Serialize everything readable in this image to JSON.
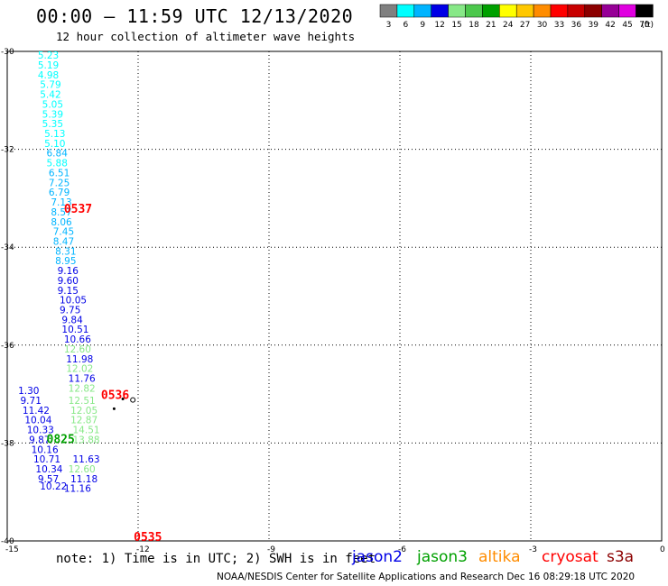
{
  "header": {
    "title": "00:00 – 11:59 UTC 12/13/2020",
    "subtitle": "12 hour collection of altimeter wave heights"
  },
  "colorbar": {
    "labels": [
      "3",
      "6",
      "9",
      "12",
      "15",
      "18",
      "21",
      "24",
      "27",
      "30",
      "33",
      "36",
      "39",
      "42",
      "45",
      "70"
    ],
    "unit": "(ft)",
    "colors": [
      "#808080",
      "#00ffff",
      "#00b4ff",
      "#0000e6",
      "#87e887",
      "#4cc84c",
      "#00a000",
      "#ffff00",
      "#ffc800",
      "#ff8c00",
      "#ff0000",
      "#c80000",
      "#8c0000",
      "#960096",
      "#e000e0",
      "#000000"
    ]
  },
  "footer": {
    "note": "note:  1) Time is in UTC; 2) SWH is in feet",
    "credit": "NOAA/NESDIS Center for Satellite Applications and Research    Dec 16 08:29:18 UTC 2020",
    "satellites": [
      {
        "name": "jason2",
        "color": "#0000e6"
      },
      {
        "name": "jason3",
        "color": "#00a000"
      },
      {
        "name": "altika",
        "color": "#ff8c00"
      },
      {
        "name": "cryosat",
        "color": "#ff0000"
      },
      {
        "name": "s3a",
        "color": "#8c0000"
      }
    ]
  },
  "chart_data": {
    "type": "scatter",
    "title": "00:00 – 11:59 UTC 12/13/2020",
    "subtitle": "12 hour collection of altimeter wave heights",
    "xlabel": "",
    "ylabel": "",
    "xlim": [
      -15,
      0
    ],
    "ylim": [
      -40,
      -30
    ],
    "xticks": [
      -15,
      -12,
      -9,
      -6,
      -3,
      0
    ],
    "xtick_labels": [
      "-15",
      "-12",
      "-9",
      "-6",
      "-3",
      "0"
    ],
    "yticks": [
      -30,
      -32,
      -34,
      -36,
      -38,
      -40
    ],
    "ytick_labels": [
      "-30",
      "-32",
      "-34",
      "-36",
      "-38",
      "-40"
    ],
    "grid": true,
    "pass_labels": [
      {
        "text": "0537",
        "x": -13.7,
        "y": -33.3,
        "color": "#ff0000"
      },
      {
        "text": "0536",
        "x": -12.85,
        "y": -37.1,
        "color": "#ff0000"
      },
      {
        "text": "0825",
        "x": -14.1,
        "y": -38.0,
        "color": "#00a000"
      },
      {
        "text": "0535",
        "x": -12.1,
        "y": -40.0,
        "color": "#ff0000"
      }
    ],
    "points": [
      {
        "x": -14.3,
        "y": -30.15,
        "value": "5.23",
        "color": "#00ffff"
      },
      {
        "x": -14.3,
        "y": -30.35,
        "value": "5.19",
        "color": "#00ffff"
      },
      {
        "x": -14.3,
        "y": -30.55,
        "value": "4.98",
        "color": "#00ffff"
      },
      {
        "x": -14.25,
        "y": -30.75,
        "value": "5.79",
        "color": "#00ffff"
      },
      {
        "x": -14.25,
        "y": -30.95,
        "value": "5.42",
        "color": "#00ffff"
      },
      {
        "x": -14.2,
        "y": -31.15,
        "value": "5.05",
        "color": "#00ffff"
      },
      {
        "x": -14.2,
        "y": -31.35,
        "value": "5.39",
        "color": "#00ffff"
      },
      {
        "x": -14.2,
        "y": -31.55,
        "value": "5.35",
        "color": "#00ffff"
      },
      {
        "x": -14.15,
        "y": -31.75,
        "value": "5.13",
        "color": "#00ffff"
      },
      {
        "x": -14.15,
        "y": -31.95,
        "value": "5.10",
        "color": "#00ffff"
      },
      {
        "x": -14.1,
        "y": -32.15,
        "value": "6.84",
        "color": "#00b4ff"
      },
      {
        "x": -14.1,
        "y": -32.35,
        "value": "5.88",
        "color": "#00ffff"
      },
      {
        "x": -14.05,
        "y": -32.55,
        "value": "6.51",
        "color": "#00b4ff"
      },
      {
        "x": -14.05,
        "y": -32.75,
        "value": "7.25",
        "color": "#00b4ff"
      },
      {
        "x": -14.05,
        "y": -32.95,
        "value": "6.79",
        "color": "#00b4ff"
      },
      {
        "x": -14.0,
        "y": -33.15,
        "value": "7.13",
        "color": "#00b4ff"
      },
      {
        "x": -14.0,
        "y": -33.35,
        "value": "8.57",
        "color": "#00b4ff"
      },
      {
        "x": -14.0,
        "y": -33.55,
        "value": "8.06",
        "color": "#00b4ff"
      },
      {
        "x": -13.95,
        "y": -33.75,
        "value": "7.45",
        "color": "#00b4ff"
      },
      {
        "x": -13.95,
        "y": -33.95,
        "value": "8.47",
        "color": "#00b4ff"
      },
      {
        "x": -13.9,
        "y": -34.15,
        "value": "8.31",
        "color": "#00b4ff"
      },
      {
        "x": -13.9,
        "y": -34.35,
        "value": "8.95",
        "color": "#00b4ff"
      },
      {
        "x": -13.85,
        "y": -34.55,
        "value": "9.16",
        "color": "#0000e6"
      },
      {
        "x": -13.85,
        "y": -34.75,
        "value": "9.60",
        "color": "#0000e6"
      },
      {
        "x": -13.85,
        "y": -34.95,
        "value": "9.15",
        "color": "#0000e6"
      },
      {
        "x": -13.8,
        "y": -35.15,
        "value": "10.05",
        "color": "#0000e6"
      },
      {
        "x": -13.8,
        "y": -35.35,
        "value": "9.75",
        "color": "#0000e6"
      },
      {
        "x": -13.75,
        "y": -35.55,
        "value": "9.84",
        "color": "#0000e6"
      },
      {
        "x": -13.75,
        "y": -35.75,
        "value": "10.51",
        "color": "#0000e6"
      },
      {
        "x": -13.7,
        "y": -35.95,
        "value": "10.66",
        "color": "#0000e6"
      },
      {
        "x": -13.7,
        "y": -36.15,
        "value": "12.60",
        "color": "#87e887"
      },
      {
        "x": -13.65,
        "y": -36.35,
        "value": "11.98",
        "color": "#0000e6"
      },
      {
        "x": -13.65,
        "y": -36.55,
        "value": "12.02",
        "color": "#87e887"
      },
      {
        "x": -13.6,
        "y": -36.75,
        "value": "11.76",
        "color": "#0000e6"
      },
      {
        "x": -13.6,
        "y": -36.95,
        "value": "12.82",
        "color": "#87e887"
      },
      {
        "x": -14.75,
        "y": -37.0,
        "value": "1.30",
        "color": "#0000e6"
      },
      {
        "x": -14.7,
        "y": -37.2,
        "value": "9.71",
        "color": "#0000e6"
      },
      {
        "x": -13.6,
        "y": -37.2,
        "value": "12.51",
        "color": "#87e887"
      },
      {
        "x": -14.65,
        "y": -37.4,
        "value": "11.42",
        "color": "#0000e6"
      },
      {
        "x": -13.55,
        "y": -37.4,
        "value": "12.05",
        "color": "#87e887"
      },
      {
        "x": -14.6,
        "y": -37.6,
        "value": "10.04",
        "color": "#0000e6"
      },
      {
        "x": -13.55,
        "y": -37.6,
        "value": "12.87",
        "color": "#87e887"
      },
      {
        "x": -14.55,
        "y": -37.8,
        "value": "10.33",
        "color": "#0000e6"
      },
      {
        "x": -13.5,
        "y": -37.8,
        "value": "14.51",
        "color": "#87e887"
      },
      {
        "x": -14.5,
        "y": -38.0,
        "value": "9.87",
        "color": "#0000e6"
      },
      {
        "x": -13.5,
        "y": -38.0,
        "value": "13.88",
        "color": "#87e887"
      },
      {
        "x": -14.45,
        "y": -38.2,
        "value": "10.16",
        "color": "#0000e6"
      },
      {
        "x": -14.4,
        "y": -38.4,
        "value": "10.71",
        "color": "#0000e6"
      },
      {
        "x": -13.5,
        "y": -38.4,
        "value": "11.63",
        "color": "#0000e6"
      },
      {
        "x": -14.35,
        "y": -38.6,
        "value": "10.34",
        "color": "#0000e6"
      },
      {
        "x": -13.6,
        "y": -38.6,
        "value": "12.60",
        "color": "#87e887"
      },
      {
        "x": -14.3,
        "y": -38.8,
        "value": "9.57",
        "color": "#0000e6"
      },
      {
        "x": -13.55,
        "y": -38.8,
        "value": "11.18",
        "color": "#0000e6"
      },
      {
        "x": -14.25,
        "y": -38.95,
        "value": "10.22",
        "color": "#0000e6"
      },
      {
        "x": -13.7,
        "y": -39.0,
        "value": "11.16",
        "color": "#0000e6"
      }
    ],
    "markers": [
      {
        "x": -12.35,
        "y": -37.1,
        "color": "#000000"
      },
      {
        "x": -12.55,
        "y": -37.3,
        "color": "#000000"
      }
    ]
  }
}
